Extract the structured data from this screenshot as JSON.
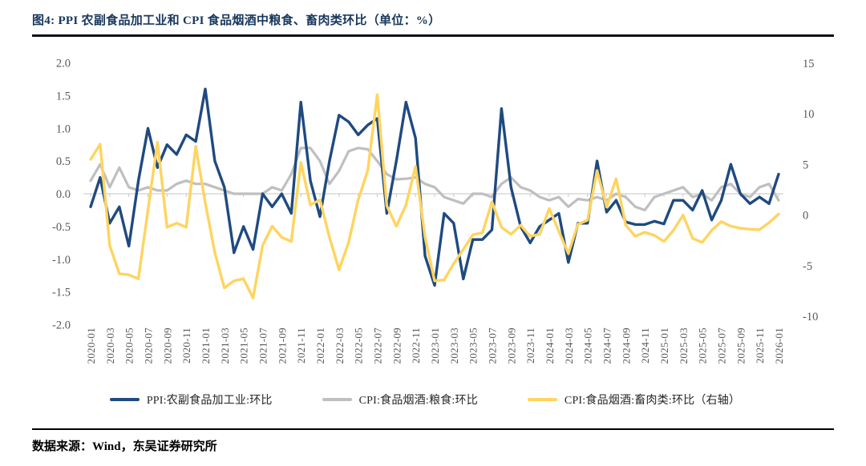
{
  "title": "图4:  PPI 农副食品加工业和 CPI 食品烟酒中粮食、畜肉类环比（单位：%）",
  "source": "数据来源：Wind，东吴证券研究所",
  "colors": {
    "ppi": "#1F4A80",
    "grain": "#BFBFBF",
    "pork": "#FFD45F",
    "title_navy": "#17375E",
    "axis_text": "#595959",
    "axis_line": "#D9D9D9",
    "legend_text": "#262626"
  },
  "legend": [
    {
      "key": "ppi",
      "label": "PPI:农副食品加工业:环比"
    },
    {
      "key": "grain",
      "label": "CPI:食品烟酒:粮食:环比"
    },
    {
      "key": "pork",
      "label": "CPI:食品烟酒:畜肉类:环比（右轴）"
    }
  ],
  "chart_data": {
    "type": "line",
    "title": "图4:  PPI 农副食品加工业和 CPI 食品烟酒中粮食、畜肉类环比（单位：%）",
    "grid": "zero-line-only",
    "legend_position": "bottom",
    "left_axis": {
      "min": -2.0,
      "max": 2.0,
      "step": 0.5,
      "tick_labels": [
        "2.0",
        "1.5",
        "1.0",
        "0.5",
        "0.0",
        "-0.5",
        "-1.0",
        "-1.5",
        "-2.0"
      ]
    },
    "right_axis": {
      "min": -10,
      "max": 15,
      "step": 5,
      "tick_labels": [
        "15",
        "10",
        "5",
        "0",
        "-5",
        "-10"
      ]
    },
    "x_tick_labels": [
      "2020-01",
      "2020-03",
      "2020-05",
      "2020-07",
      "2020-09",
      "2020-11",
      "2021-01",
      "2021-03",
      "2021-05",
      "2021-07",
      "2021-09",
      "2021-11",
      "2022-01",
      "2022-03",
      "2022-05",
      "2022-07",
      "2022-09",
      "2022-11",
      "2023-01",
      "2023-03",
      "2023-05",
      "2023-07",
      "2023-09",
      "2023-11",
      "2024-01",
      "2024-03",
      "2024-05",
      "2024-07",
      "2024-09",
      "2024-11",
      "2025-01",
      "2025-03",
      "2025-05",
      "2025-07",
      "2025-09",
      "2025-11",
      "2026-01"
    ],
    "x": [
      "2020-01",
      "2020-02",
      "2020-03",
      "2020-04",
      "2020-05",
      "2020-06",
      "2020-07",
      "2020-08",
      "2020-09",
      "2020-10",
      "2020-11",
      "2020-12",
      "2021-01",
      "2021-02",
      "2021-03",
      "2021-04",
      "2021-05",
      "2021-06",
      "2021-07",
      "2021-08",
      "2021-09",
      "2021-10",
      "2021-11",
      "2021-12",
      "2022-01",
      "2022-02",
      "2022-03",
      "2022-04",
      "2022-05",
      "2022-06",
      "2022-07",
      "2022-08",
      "2022-09",
      "2022-10",
      "2022-11",
      "2022-12",
      "2023-01",
      "2023-02",
      "2023-03",
      "2023-04",
      "2023-05",
      "2023-06",
      "2023-07",
      "2023-08",
      "2023-09",
      "2023-10",
      "2023-11",
      "2023-12",
      "2024-01",
      "2024-02",
      "2024-03",
      "2024-04",
      "2024-05",
      "2024-06",
      "2024-07",
      "2024-08",
      "2024-09",
      "2024-10",
      "2024-11",
      "2024-12",
      "2025-01",
      "2025-02",
      "2025-03",
      "2025-04",
      "2025-05",
      "2025-06",
      "2025-07",
      "2025-08",
      "2025-09",
      "2025-10",
      "2025-11",
      "2025-12",
      "2026-01"
    ],
    "series": [
      {
        "name": "PPI:农副食品加工业:环比",
        "axis": "left",
        "color_key": "ppi",
        "values": [
          -0.2,
          0.25,
          -0.45,
          -0.2,
          -0.8,
          0.2,
          1.0,
          0.4,
          0.75,
          0.6,
          0.9,
          0.8,
          1.6,
          0.5,
          0.1,
          -0.9,
          -0.5,
          -0.85,
          0.0,
          -0.2,
          0.0,
          -0.3,
          1.4,
          0.2,
          -0.35,
          0.5,
          1.2,
          1.1,
          0.9,
          1.05,
          1.15,
          -0.3,
          0.5,
          1.4,
          0.85,
          -0.95,
          -1.4,
          -0.3,
          -0.45,
          -1.3,
          -0.7,
          -0.7,
          -0.55,
          1.3,
          0.1,
          -0.5,
          -0.75,
          -0.5,
          -0.4,
          -0.3,
          -1.05,
          -0.45,
          -0.45,
          0.5,
          -0.28,
          -0.1,
          -0.43,
          -0.47,
          -0.47,
          -0.42,
          -0.46,
          -0.1,
          -0.1,
          -0.25,
          0.05,
          -0.4,
          -0.1,
          0.45,
          0.0,
          -0.15,
          -0.05,
          -0.15,
          0.3
        ]
      },
      {
        "name": "CPI:食品烟酒:粮食:环比",
        "axis": "left",
        "color_key": "grain",
        "values": [
          0.2,
          0.45,
          0.1,
          0.4,
          0.1,
          0.05,
          0.1,
          0.05,
          0.05,
          0.15,
          0.2,
          0.15,
          0.15,
          0.1,
          0.05,
          0.0,
          0.0,
          0.0,
          0.0,
          0.1,
          0.05,
          0.3,
          0.7,
          0.7,
          0.5,
          0.15,
          0.35,
          0.65,
          0.7,
          0.68,
          0.5,
          0.3,
          0.22,
          0.23,
          0.25,
          0.15,
          0.1,
          -0.05,
          -0.1,
          -0.15,
          0.0,
          0.0,
          -0.05,
          0.15,
          0.25,
          0.1,
          0.05,
          -0.05,
          -0.1,
          -0.05,
          -0.2,
          -0.08,
          -0.1,
          -0.05,
          -0.1,
          0.0,
          -0.05,
          -0.2,
          -0.25,
          -0.05,
          0.0,
          0.05,
          0.1,
          -0.05,
          0.0,
          -0.1,
          0.1,
          0.15,
          0.0,
          -0.05,
          0.1,
          0.15,
          -0.1
        ]
      },
      {
        "name": "CPI:食品烟酒:畜肉类:环比（右轴）",
        "axis": "right",
        "color_key": "pork",
        "values": [
          5.5,
          7.0,
          -3.0,
          -5.8,
          -5.9,
          -6.3,
          0.5,
          7.2,
          -1.2,
          -0.8,
          -1.2,
          6.8,
          1.2,
          -3.7,
          -7.2,
          -6.5,
          -6.3,
          -8.2,
          -3.0,
          -1.1,
          -2.2,
          -2.6,
          5.2,
          1.0,
          1.5,
          -2.2,
          -5.4,
          -2.7,
          1.5,
          4.4,
          11.9,
          0.9,
          -1.1,
          1.0,
          4.8,
          -2.2,
          -6.5,
          -6.4,
          -4.8,
          -3.4,
          -1.95,
          -1.75,
          1.3,
          -1.2,
          -1.9,
          -1.0,
          -2.1,
          -1.9,
          0.65,
          -1.6,
          -3.8,
          -0.9,
          -0.5,
          4.4,
          0.8,
          3.6,
          -1.0,
          -2.1,
          -1.7,
          -2.0,
          -2.6,
          -1.5,
          0.0,
          -2.3,
          -2.7,
          -1.5,
          -0.65,
          -1.1,
          -1.3,
          -1.4,
          -1.45,
          -0.75,
          0.1
        ]
      }
    ]
  }
}
